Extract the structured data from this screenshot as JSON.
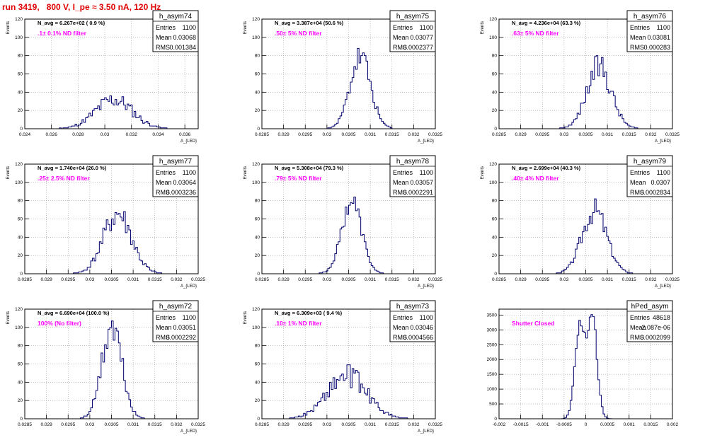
{
  "page": {
    "title": "run 3419,   800 V, I_pe ≈ 3.50 nA, 120 Hz",
    "colors": {
      "title": "#e00000",
      "histogram": "#00006e",
      "annotation": "#ff00ff",
      "grid": "#9a9a9a"
    }
  },
  "chart_data": [
    {
      "type": "bar",
      "name": "h_asym74",
      "ylabel": "Events",
      "xlabel": "A_{LED}",
      "n_avg": "N_avg = 6.267e+02 ( 0.9 %)",
      "filter": ".1± 0.1% ND filter",
      "stats": [
        [
          "Entries",
          "1100"
        ],
        [
          "Mean",
          "0.03068"
        ],
        [
          "RMS",
          "0.001384"
        ]
      ],
      "xlim": [
        0.024,
        0.037
      ],
      "ylim": [
        0,
        120
      ],
      "xticks": [
        "0.024",
        "0.026",
        "0.028",
        "0.03",
        "0.032",
        "0.034",
        "0.036"
      ],
      "yticks": [
        "0",
        "20",
        "40",
        "60",
        "80",
        "100",
        "120"
      ],
      "hist": {
        "mean": 0.03068,
        "rms": 0.001384,
        "peak": 32,
        "seed": 11,
        "noise": 0.3
      }
    },
    {
      "type": "bar",
      "name": "h_asym75",
      "ylabel": "Events",
      "xlabel": "A_{LED}",
      "n_avg": "N_avg = 3.387e+04 (50.6 %)",
      "filter": ".50± 5% ND filter",
      "stats": [
        [
          "Entries",
          "1100"
        ],
        [
          "Mean",
          "0.03077"
        ],
        [
          "RMS",
          "0.0002377"
        ]
      ],
      "xlim": [
        0.0285,
        0.0325
      ],
      "ylim": [
        0,
        120
      ],
      "xticks": [
        "0.0285",
        "0.029",
        "0.0295",
        "0.03",
        "0.0305",
        "0.031",
        "0.0315",
        "0.032",
        "0.0325"
      ],
      "yticks": [
        "0",
        "20",
        "40",
        "60",
        "80",
        "100",
        "120"
      ],
      "hist": {
        "mean": 0.03077,
        "rms": 0.0002377,
        "peak": 78,
        "seed": 23,
        "noise": 0.2
      }
    },
    {
      "type": "bar",
      "name": "h_asym76",
      "ylabel": "Events",
      "xlabel": "A_{LED}",
      "n_avg": "N_avg = 4.236e+04 (63.3 %)",
      "filter": ".63± 5% ND filter",
      "stats": [
        [
          "Entries",
          "1100"
        ],
        [
          "Mean",
          "0.03081"
        ],
        [
          "RMS",
          "0.000283"
        ]
      ],
      "xlim": [
        0.0285,
        0.0325
      ],
      "ylim": [
        0,
        120
      ],
      "xticks": [
        "0.0285",
        "0.029",
        "0.0295",
        "0.03",
        "0.0305",
        "0.031",
        "0.0315",
        "0.032",
        "0.0325"
      ],
      "yticks": [
        "0",
        "20",
        "40",
        "60",
        "80",
        "100",
        "120"
      ],
      "hist": {
        "mean": 0.03081,
        "rms": 0.000283,
        "peak": 68,
        "seed": 37,
        "noise": 0.22
      }
    },
    {
      "type": "bar",
      "name": "h_asym77",
      "ylabel": "Events",
      "xlabel": "A_{LED}",
      "n_avg": "N_avg = 1.740e+04 (26.0 %)",
      "filter": ".25± 2.5% ND filter",
      "stats": [
        [
          "Entries",
          "1100"
        ],
        [
          "Mean",
          "0.03064"
        ],
        [
          "RMS",
          "0.0003236"
        ]
      ],
      "xlim": [
        0.0285,
        0.0325
      ],
      "ylim": [
        0,
        120
      ],
      "xticks": [
        "0.0285",
        "0.029",
        "0.0295",
        "0.03",
        "0.0305",
        "0.031",
        "0.0315",
        "0.032",
        "0.0325"
      ],
      "yticks": [
        "0",
        "20",
        "40",
        "60",
        "80",
        "100",
        "120"
      ],
      "hist": {
        "mean": 0.03064,
        "rms": 0.0003236,
        "peak": 65,
        "seed": 41,
        "noise": 0.25
      }
    },
    {
      "type": "bar",
      "name": "h_asym78",
      "ylabel": "Events",
      "xlabel": "A_{LED}",
      "n_avg": "N_avg = 5.308e+04 (79.3 %)",
      "filter": ".79± 5% ND filter",
      "stats": [
        [
          "Entries",
          "1100"
        ],
        [
          "Mean",
          "0.03057"
        ],
        [
          "RMS",
          "0.0002291"
        ]
      ],
      "xlim": [
        0.0285,
        0.0325
      ],
      "ylim": [
        0,
        120
      ],
      "xticks": [
        "0.0285",
        "0.029",
        "0.0295",
        "0.03",
        "0.0305",
        "0.031",
        "0.0315",
        "0.032",
        "0.0325"
      ],
      "yticks": [
        "0",
        "20",
        "40",
        "60",
        "80",
        "100",
        "120"
      ],
      "hist": {
        "mean": 0.03057,
        "rms": 0.0002291,
        "peak": 80,
        "seed": 53,
        "noise": 0.15
      }
    },
    {
      "type": "bar",
      "name": "h_asym79",
      "ylabel": "Events",
      "xlabel": "A_{LED}",
      "n_avg": "N_avg = 2.699e+04 (40.3 %)",
      "filter": ".40± 4% ND filter",
      "stats": [
        [
          "Entries",
          "1100"
        ],
        [
          "Mean",
          "0.0307"
        ],
        [
          "RMS",
          "0.0002834"
        ]
      ],
      "xlim": [
        0.0285,
        0.0325
      ],
      "ylim": [
        0,
        120
      ],
      "xticks": [
        "0.0285",
        "0.029",
        "0.0295",
        "0.03",
        "0.0305",
        "0.031",
        "0.0315",
        "0.032",
        "0.0325"
      ],
      "yticks": [
        "0",
        "20",
        "40",
        "60",
        "80",
        "100",
        "120"
      ],
      "hist": {
        "mean": 0.0307,
        "rms": 0.0002834,
        "peak": 70,
        "seed": 67,
        "noise": 0.2
      }
    },
    {
      "type": "bar",
      "name": "h_asym72",
      "ylabel": "Events",
      "xlabel": "A_{LED}",
      "n_avg": "N_avg = 6.690e+04 (100.0 %)",
      "filter": "100% (No filter)",
      "stats": [
        [
          "Entries",
          "1100"
        ],
        [
          "Mean",
          "0.03051"
        ],
        [
          "RMS",
          "0.0002292"
        ]
      ],
      "xlim": [
        0.0285,
        0.0325
      ],
      "ylim": [
        0,
        120
      ],
      "xticks": [
        "0.0285",
        "0.029",
        "0.0295",
        "0.03",
        "0.0305",
        "0.031",
        "0.0315",
        "0.032",
        "0.0325"
      ],
      "yticks": [
        "0",
        "20",
        "40",
        "60",
        "80",
        "100",
        "120"
      ],
      "hist": {
        "mean": 0.03051,
        "rms": 0.0002292,
        "peak": 100,
        "seed": 71,
        "noise": 0.22
      }
    },
    {
      "type": "bar",
      "name": "h_asym73",
      "ylabel": "Events",
      "xlabel": "A_{LED}",
      "n_avg": "N_avg = 6.309e+03 ( 9.4 %)",
      "filter": ".10± 1% ND filter",
      "stats": [
        [
          "Entries",
          "1100"
        ],
        [
          "Mean",
          "0.03046"
        ],
        [
          "RMS",
          "0.0004566"
        ]
      ],
      "xlim": [
        0.0285,
        0.0325
      ],
      "ylim": [
        0,
        120
      ],
      "xticks": [
        "0.0285",
        "0.029",
        "0.0295",
        "0.03",
        "0.0305",
        "0.031",
        "0.0315",
        "0.032",
        "0.0325"
      ],
      "yticks": [
        "0",
        "20",
        "40",
        "60",
        "80",
        "100",
        "120"
      ],
      "hist": {
        "mean": 0.03046,
        "rms": 0.0004566,
        "peak": 47,
        "seed": 89,
        "noise": 0.28
      }
    },
    {
      "type": "bar",
      "name": "hPed_asym",
      "ylabel": "",
      "xlabel": "",
      "n_avg": "",
      "filter": "Shutter Closed",
      "stats": [
        [
          "Entries",
          "48618"
        ],
        [
          "Mean",
          "-2.087e-06"
        ],
        [
          "RMS",
          "0.0002099"
        ]
      ],
      "xlim": [
        -0.002,
        0.002
      ],
      "ylim": [
        0,
        3700
      ],
      "xticks": [
        "-0.002",
        "-0.0015",
        "-0.001",
        "-0.0005",
        "0",
        "0.0005",
        "0.001",
        "0.0015",
        "0.002"
      ],
      "yticks": [
        "0",
        "500",
        "1000",
        "1500",
        "2000",
        "2500",
        "3000",
        "3500"
      ],
      "hist": {
        "bimodal": [
          [
            -0.00014,
            0.00011,
            3100
          ],
          [
            0.00015,
            0.00011,
            3500
          ]
        ],
        "seed": 97,
        "noise": 0.06
      }
    }
  ]
}
